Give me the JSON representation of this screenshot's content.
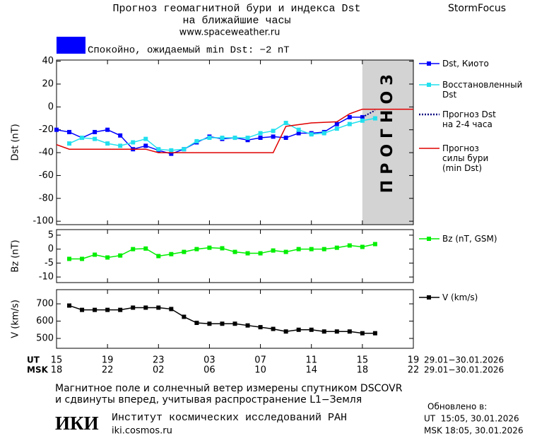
{
  "header": {
    "title": "Прогноз геомагнитной бури и индекса Dst",
    "subtitle": "на ближайшие часы",
    "url": "www.spaceweather.ru",
    "brand": "StormFocus",
    "status": "Спокойно, ожидаемый min Dst: −2 nT",
    "status_color": "#0000ff"
  },
  "chart_data": [
    {
      "type": "line",
      "ylabel": "Dst (nT)",
      "xlim": [
        0,
        28
      ],
      "ylim": [
        -103,
        41
      ],
      "yticks": [
        40,
        20,
        0,
        -20,
        -40,
        -60,
        -80,
        -100
      ],
      "forecast_region": {
        "x": [
          24,
          28
        ],
        "label": "ПРОГНОЗ",
        "color": "#d3d3d3"
      },
      "series": [
        {
          "name": "Dst, Киото",
          "color": "#0000ff",
          "marker": true,
          "x": [
            0,
            1,
            2,
            3,
            4,
            5,
            6,
            7,
            8,
            9,
            10,
            11,
            12,
            13,
            14,
            15,
            16,
            17,
            18,
            19,
            20,
            21,
            22,
            23,
            24
          ],
          "values": [
            -20,
            -22,
            -27,
            -22,
            -20,
            -25,
            -37,
            -34,
            -38,
            -41,
            -37,
            -31,
            -26,
            -28,
            -27,
            -29,
            -27,
            -26,
            -27,
            -23,
            -23,
            -22,
            -15,
            -9,
            -9
          ]
        },
        {
          "name": "Восстановленный\nDst",
          "color": "#22e0ee",
          "marker": true,
          "x": [
            1,
            2,
            3,
            4,
            5,
            6,
            7,
            8,
            9,
            10,
            11,
            12,
            13,
            14,
            15,
            16,
            17,
            18,
            19,
            20,
            21,
            22,
            23,
            24,
            25
          ],
          "values": [
            -32,
            -27,
            -28,
            -32,
            -34,
            -31,
            -28,
            -37,
            -38,
            -37,
            -30,
            -27,
            -27,
            -27,
            -27,
            -23,
            -21,
            -14,
            -20,
            -24,
            -23,
            -19,
            -15,
            -12,
            -10
          ]
        },
        {
          "name": "Прогноз Dst\nна 2-4 часа",
          "color": "#000080",
          "dash": "dotted",
          "x": [
            24,
            25
          ],
          "values": [
            -9,
            -3
          ]
        },
        {
          "name": "Прогноз\nсилы бури\n(min Dst)",
          "color": "#e00000",
          "x": [
            0,
            1,
            7,
            8,
            17,
            18,
            20,
            22,
            23,
            24,
            28
          ],
          "values": [
            -33,
            -37,
            -37,
            -40,
            -40,
            -17,
            -14,
            -13,
            -6,
            -2,
            -2
          ]
        }
      ]
    },
    {
      "type": "line",
      "ylabel": "Bz (nT)",
      "xlim": [
        0,
        28
      ],
      "ylim": [
        -12,
        7
      ],
      "yticks": [
        5,
        0,
        -5,
        -10
      ],
      "series": [
        {
          "name": "Bz (nT, GSM)",
          "color": "#00ee00",
          "marker": true,
          "x": [
            1,
            2,
            3,
            4,
            5,
            6,
            7,
            8,
            9,
            10,
            11,
            12,
            13,
            14,
            15,
            16,
            17,
            18,
            19,
            20,
            21,
            22,
            23,
            24,
            25
          ],
          "values": [
            -3.5,
            -3.5,
            -2,
            -3,
            -2.3,
            0,
            0.2,
            -2.5,
            -1.8,
            -1,
            0,
            0.5,
            0.3,
            -1,
            -1.5,
            -1.5,
            -0.5,
            -1,
            0,
            0,
            0,
            0.5,
            1.3,
            0.8,
            1.8
          ]
        }
      ]
    },
    {
      "type": "line",
      "ylabel": "V (km/s)",
      "xlim": [
        0,
        28
      ],
      "ylim": [
        443,
        782
      ],
      "yticks": [
        700,
        600,
        500
      ],
      "xticks": [
        {
          "value": 0,
          "label": "15"
        },
        {
          "value": 4,
          "label": "19"
        },
        {
          "value": 8,
          "label": "23"
        },
        {
          "value": 12,
          "label": "03"
        },
        {
          "value": 16,
          "label": "07"
        },
        {
          "value": 20,
          "label": "11"
        },
        {
          "value": 24,
          "label": "15"
        },
        {
          "value": 28,
          "label": "19"
        }
      ],
      "msk_tick_labels": [
        "18",
        "22",
        "02",
        "06",
        "10",
        "14",
        "18",
        "22"
      ],
      "ut_label": "UT",
      "msk_label": "MSK",
      "date_range_ut": "29.01−30.01.2026",
      "date_range_msk": "29.01−30.01.2026",
      "series": [
        {
          "name": "V (km/s)",
          "color": "#000000",
          "marker": true,
          "x": [
            1,
            2,
            3,
            4,
            5,
            6,
            7,
            8,
            9,
            10,
            11,
            12,
            13,
            14,
            15,
            16,
            17,
            18,
            19,
            20,
            21,
            22,
            23,
            24,
            25
          ],
          "values": [
            690,
            665,
            665,
            665,
            665,
            678,
            678,
            678,
            670,
            625,
            590,
            585,
            585,
            585,
            575,
            565,
            555,
            540,
            550,
            550,
            540,
            540,
            540,
            530,
            530
          ]
        }
      ]
    }
  ],
  "footer": {
    "note_line1": "Магнитное поле и солнечный ветер измерены спутником DSCOVR",
    "note_line2": "и сдвинуты вперед, учитывая распространение L1−Земля",
    "logo": "ИКИ",
    "institute": "Институт космических исследований РАН",
    "institute_url": "iki.cosmos.ru",
    "updated_label": "Обновлено в:",
    "updated_ut": "UT  15:05, 30.01.2026",
    "updated_msk": "MSK 18:05, 30.01.2026"
  }
}
